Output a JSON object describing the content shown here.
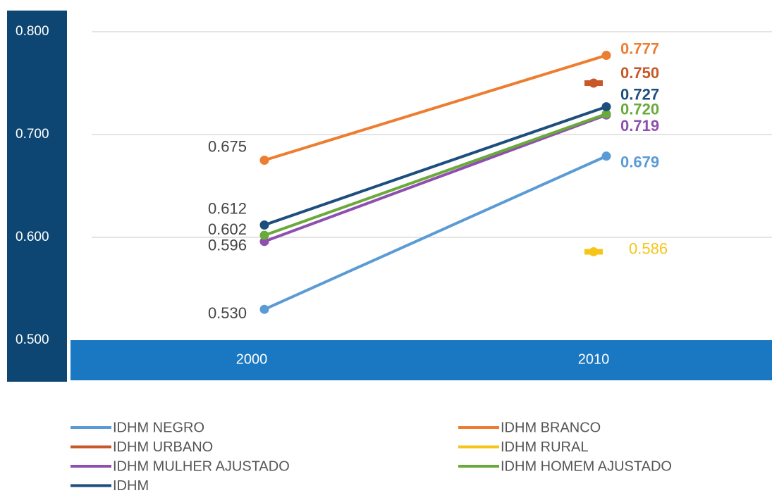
{
  "chart_data": {
    "type": "line",
    "categories": [
      "2000",
      "2010"
    ],
    "series": [
      {
        "name": "IDHM NEGRO",
        "color": "#5b9bd5",
        "values": [
          0.53,
          0.679
        ],
        "value_labels": [
          "0.530",
          "0.679"
        ]
      },
      {
        "name": "IDHM BRANCO",
        "color": "#ed7d31",
        "values": [
          0.675,
          0.777
        ],
        "value_labels": [
          "0.675",
          "0.777"
        ]
      },
      {
        "name": "IDHM URBANO",
        "color": "#c8582a",
        "values": [
          null,
          0.75
        ],
        "value_labels": [
          null,
          "0.750"
        ]
      },
      {
        "name": "IDHM RURAL",
        "color": "#f5c518",
        "values": [
          null,
          0.586
        ],
        "value_labels": [
          null,
          "0.586"
        ]
      },
      {
        "name": "IDHM MULHER AJUSTADO",
        "color": "#8e4fb0",
        "values": [
          0.596,
          0.719
        ],
        "value_labels": [
          "0.596",
          "0.719"
        ]
      },
      {
        "name": "IDHM HOMEM AJUSTADO",
        "color": "#6aaa3a",
        "values": [
          0.602,
          0.72
        ],
        "value_labels": [
          "0.602",
          "0.720"
        ]
      },
      {
        "name": "IDHM",
        "color": "#1d4e7e",
        "values": [
          0.612,
          0.727
        ],
        "value_labels": [
          "0.612",
          "0.727"
        ]
      }
    ],
    "ylim": [
      0.5,
      0.8
    ],
    "yticks": [
      {
        "value": 0.5,
        "label": "0.500"
      },
      {
        "value": 0.6,
        "label": "0.600"
      },
      {
        "value": 0.7,
        "label": "0.700"
      },
      {
        "value": 0.8,
        "label": "0.800"
      }
    ],
    "grid": true
  }
}
